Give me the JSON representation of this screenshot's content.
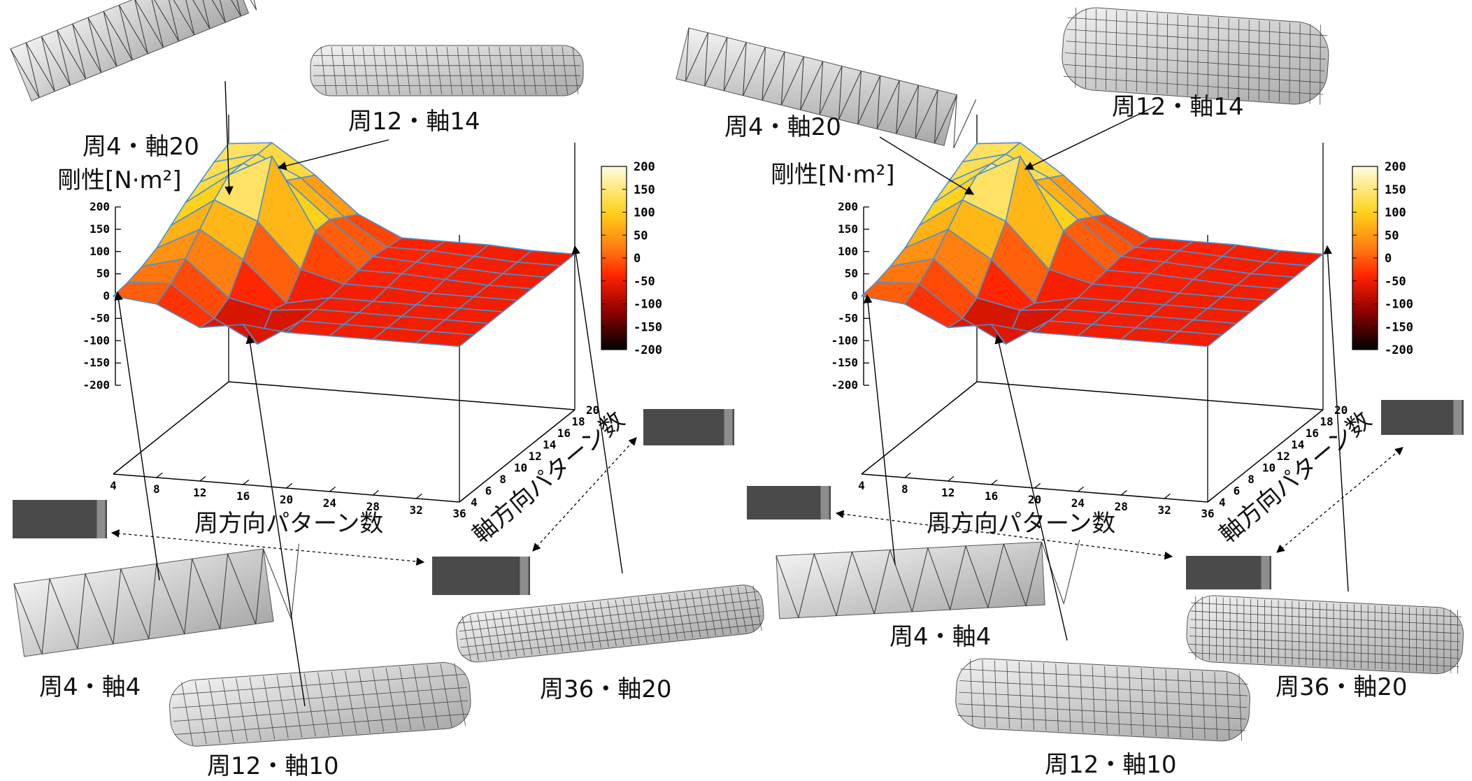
{
  "chart_data": [
    {
      "type": "surface",
      "panel": "left",
      "zlabel": "剛性[N·m²]",
      "xlabel": "周方向パターン数",
      "ylabel": "軸方向パターン数",
      "zlim": [
        -200,
        200
      ],
      "z_ticks": [
        "200",
        "150",
        "100",
        "50",
        "0",
        "-50",
        "-100",
        "-150",
        "-200"
      ],
      "x_ticks": [
        "4",
        "8",
        "12",
        "16",
        "20",
        "24",
        "28",
        "32",
        "36"
      ],
      "y_ticks": [
        "4",
        "6",
        "8",
        "10",
        "12",
        "14",
        "16",
        "18",
        "20"
      ],
      "colorbar_ticks": [
        "200",
        "150",
        "100",
        "50",
        "0",
        "-50",
        "-100",
        "-150",
        "-200"
      ],
      "colorbar_range": [
        -200,
        200
      ],
      "x": [
        4,
        8,
        12,
        16,
        20,
        24,
        28,
        32,
        36
      ],
      "y": [
        4,
        6,
        8,
        10,
        12,
        14,
        16,
        18,
        20
      ],
      "z": [
        [
          0,
          -10,
          -55,
          -40,
          -50,
          -50,
          -50,
          -50,
          -50
        ],
        [
          5,
          10,
          -60,
          -110,
          -50,
          -50,
          -50,
          -50,
          -50
        ],
        [
          15,
          40,
          -40,
          -60,
          -50,
          -50,
          -50,
          -50,
          -50
        ],
        [
          30,
          80,
          20,
          -70,
          -50,
          -50,
          -50,
          -50,
          -50
        ],
        [
          55,
          120,
          80,
          -20,
          -45,
          -45,
          -50,
          -50,
          -50
        ],
        [
          80,
          150,
          200,
          40,
          -40,
          -40,
          -45,
          -50,
          -50
        ],
        [
          100,
          150,
          120,
          40,
          -35,
          -40,
          -45,
          -50,
          -50
        ],
        [
          120,
          145,
          100,
          20,
          -40,
          -40,
          -45,
          -50,
          -50
        ],
        [
          135,
          145,
          80,
          0,
          -45,
          -45,
          -45,
          -50,
          -50
        ]
      ],
      "annotations": [
        "周4・軸20",
        "周12・軸14",
        "周4・軸4",
        "周12・軸10",
        "周36・軸20"
      ]
    },
    {
      "type": "surface",
      "panel": "right",
      "zlabel": "剛性[N·m²]",
      "xlabel": "周方向パターン数",
      "ylabel": "軸方向パターン数",
      "zlim": [
        -200,
        200
      ],
      "z_ticks": [
        "200",
        "150",
        "100",
        "50",
        "0",
        "-50",
        "-100",
        "-150",
        "-200"
      ],
      "x_ticks": [
        "4",
        "8",
        "12",
        "16",
        "20",
        "24",
        "28",
        "32",
        "36"
      ],
      "y_ticks": [
        "4",
        "6",
        "8",
        "10",
        "12",
        "14",
        "16",
        "18",
        "20"
      ],
      "colorbar_ticks": [
        "200",
        "150",
        "100",
        "50",
        "0",
        "-50",
        "-100",
        "-150",
        "-200"
      ],
      "colorbar_range": [
        -200,
        200
      ],
      "x": [
        4,
        8,
        12,
        16,
        20,
        24,
        28,
        32,
        36
      ],
      "y": [
        4,
        6,
        8,
        10,
        12,
        14,
        16,
        18,
        20
      ],
      "z": [
        [
          0,
          -10,
          -55,
          -40,
          -50,
          -50,
          -50,
          -50,
          -50
        ],
        [
          5,
          10,
          -60,
          -110,
          -50,
          -50,
          -50,
          -50,
          -50
        ],
        [
          15,
          40,
          -40,
          -60,
          -50,
          -50,
          -50,
          -50,
          -50
        ],
        [
          30,
          80,
          20,
          -70,
          -50,
          -50,
          -50,
          -50,
          -50
        ],
        [
          55,
          120,
          80,
          -20,
          -45,
          -45,
          -50,
          -50,
          -50
        ],
        [
          80,
          150,
          200,
          40,
          -40,
          -40,
          -45,
          -50,
          -50
        ],
        [
          100,
          150,
          120,
          40,
          -35,
          -40,
          -45,
          -50,
          -50
        ],
        [
          120,
          145,
          100,
          20,
          -40,
          -40,
          -45,
          -50,
          -50
        ],
        [
          135,
          145,
          80,
          0,
          -45,
          -45,
          -45,
          -50,
          -50
        ]
      ],
      "annotations": [
        "周4・軸20",
        "周12・軸14",
        "周4・軸4",
        "周12・軸10",
        "周36・軸20"
      ]
    }
  ],
  "thumbnail_icons": [
    "folded-tube-thumbnail",
    "cylinder-mesh-thumbnail"
  ],
  "colors": {
    "colormap": [
      "#000000",
      "#8b0000",
      "#ff2200",
      "#ff7a10",
      "#ffd21a",
      "#fffce0"
    ],
    "mesh_line": "#4a90d0",
    "thumbnail_fill": "#4a4a4a",
    "model_fill": "#d6d6d6"
  }
}
